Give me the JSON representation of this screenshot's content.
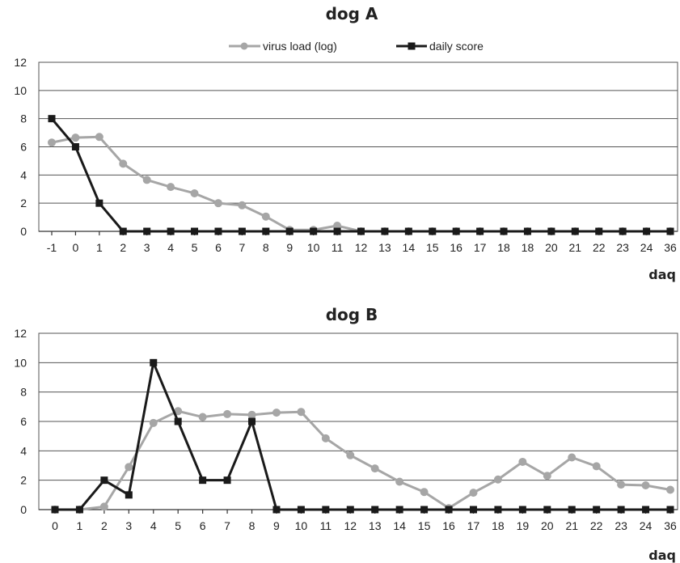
{
  "chart_data": [
    {
      "type": "line",
      "title": "dog A",
      "xlabel": "daq",
      "ylabel": "",
      "ylim": [
        0,
        12
      ],
      "yticks": [
        "0",
        "2",
        "4",
        "6",
        "8",
        "10",
        "12"
      ],
      "categories": [
        "-1",
        "0",
        "1",
        "2",
        "3",
        "4",
        "5",
        "6",
        "7",
        "8",
        "9",
        "10",
        "11",
        "12",
        "13",
        "14",
        "15",
        "16",
        "17",
        "18",
        "18",
        "20",
        "21",
        "22",
        "23",
        "24",
        "36"
      ],
      "legend_position": "top-center",
      "grid": true,
      "series": [
        {
          "name": "virus load (log)",
          "color": "#a6a6a6",
          "marker": "circle",
          "values": [
            6.3,
            6.65,
            6.7,
            4.8,
            3.65,
            3.15,
            2.7,
            2.0,
            1.85,
            1.05,
            0.1,
            0.1,
            0.4,
            0,
            0,
            0,
            0,
            0,
            0,
            0,
            0,
            0,
            0,
            0,
            0,
            0,
            0
          ]
        },
        {
          "name": "daily score",
          "color": "#1a1a1a",
          "marker": "square",
          "values": [
            8,
            6,
            2,
            0,
            0,
            0,
            0,
            0,
            0,
            0,
            0,
            0,
            0,
            0,
            0,
            0,
            0,
            0,
            0,
            0,
            0,
            0,
            0,
            0,
            0,
            0,
            0
          ]
        }
      ]
    },
    {
      "type": "line",
      "title": "dog B",
      "xlabel": "daq",
      "ylabel": "",
      "ylim": [
        0,
        12
      ],
      "yticks": [
        "0",
        "2",
        "4",
        "6",
        "8",
        "10",
        "12"
      ],
      "categories": [
        "0",
        "1",
        "2",
        "3",
        "4",
        "5",
        "6",
        "7",
        "8",
        "9",
        "10",
        "11",
        "12",
        "13",
        "14",
        "15",
        "16",
        "17",
        "18",
        "19",
        "20",
        "21",
        "22",
        "23",
        "24",
        "36"
      ],
      "grid": true,
      "series": [
        {
          "name": "virus load (log)",
          "color": "#a6a6a6",
          "marker": "circle",
          "values": [
            0,
            0,
            0.2,
            2.9,
            5.9,
            6.7,
            6.3,
            6.5,
            6.45,
            6.6,
            6.65,
            4.85,
            3.7,
            2.8,
            1.9,
            1.2,
            0.1,
            1.15,
            2.05,
            3.25,
            2.3,
            3.55,
            2.95,
            1.7,
            1.65,
            1.35
          ]
        },
        {
          "name": "daily score",
          "color": "#1a1a1a",
          "marker": "square",
          "values": [
            0,
            0,
            2,
            1,
            10,
            6,
            2,
            2,
            6,
            0,
            0,
            0,
            0,
            0,
            0,
            0,
            0,
            0,
            0,
            0,
            0,
            0,
            0,
            0,
            0,
            0
          ]
        }
      ]
    }
  ]
}
